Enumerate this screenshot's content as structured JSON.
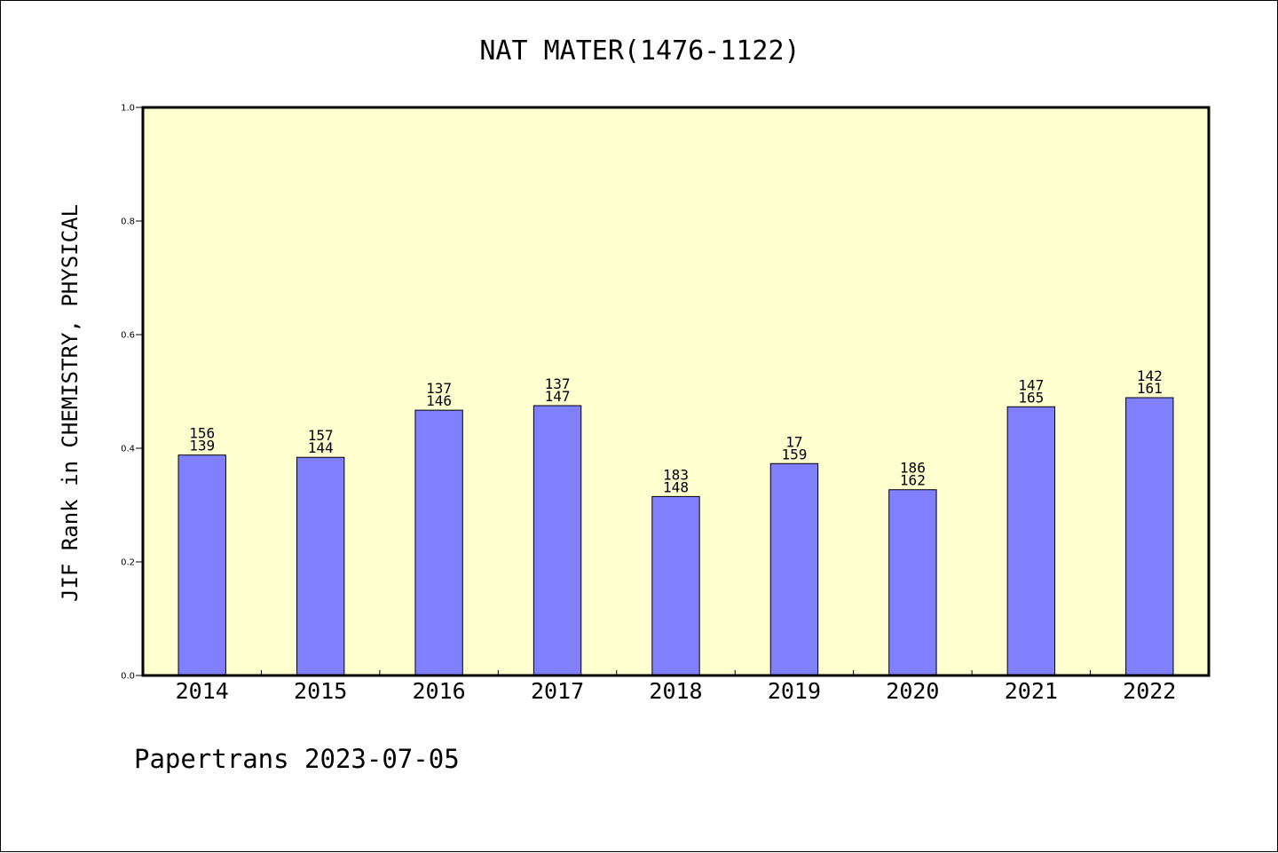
{
  "chart_data": {
    "type": "bar",
    "title": "NAT MATER(1476-1122)",
    "ylabel": "JIF Rank in CHEMISTRY, PHYSICAL",
    "xlabel": "",
    "categories": [
      "2014",
      "2015",
      "2016",
      "2017",
      "2018",
      "2019",
      "2020",
      "2021",
      "2022"
    ],
    "values": [
      0.388,
      0.384,
      0.467,
      0.475,
      0.315,
      0.373,
      0.327,
      0.473,
      0.489
    ],
    "label_top": [
      "156",
      "157",
      "137",
      "137",
      "183",
      "17",
      "186",
      "147",
      "142"
    ],
    "label_bottom": [
      "139",
      "144",
      "146",
      "147",
      "148",
      "159",
      "162",
      "165",
      "161"
    ],
    "ylim": [
      0,
      1.0
    ],
    "yticks": [
      "0.0",
      "0.2",
      "0.4",
      "0.6",
      "0.8",
      "1.0"
    ],
    "grid": false,
    "legend": "none",
    "colors": {
      "plot_background": "#ffffd0",
      "bar": "#8080ff",
      "axis": "#000000"
    }
  },
  "footer": "Papertrans 2023-07-05"
}
